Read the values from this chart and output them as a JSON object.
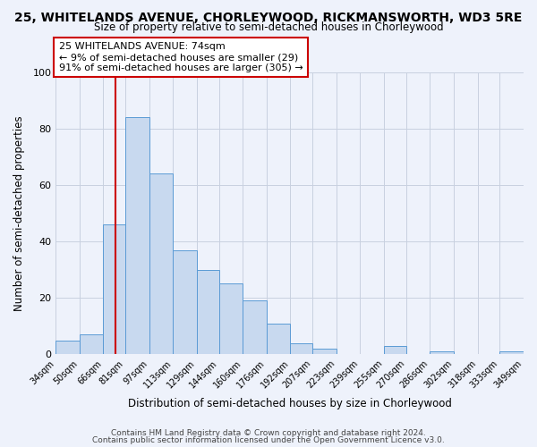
{
  "title1": "25, WHITELANDS AVENUE, CHORLEYWOOD, RICKMANSWORTH, WD3 5RE",
  "title2": "Size of property relative to semi-detached houses in Chorleywood",
  "xlabel": "Distribution of semi-detached houses by size in Chorleywood",
  "ylabel": "Number of semi-detached properties",
  "bin_labels": [
    "34sqm",
    "50sqm",
    "66sqm",
    "81sqm",
    "97sqm",
    "113sqm",
    "129sqm",
    "144sqm",
    "160sqm",
    "176sqm",
    "192sqm",
    "207sqm",
    "223sqm",
    "239sqm",
    "255sqm",
    "270sqm",
    "286sqm",
    "302sqm",
    "318sqm",
    "333sqm",
    "349sqm"
  ],
  "bar_heights": [
    5,
    7,
    46,
    84,
    64,
    37,
    30,
    25,
    19,
    11,
    4,
    2,
    0,
    0,
    3,
    0,
    1,
    0,
    0,
    1,
    0
  ],
  "bar_color": "#c8d9ef",
  "bar_edge_color": "#5b9bd5",
  "vline_color": "#cc0000",
  "annotation_title": "25 WHITELANDS AVENUE: 74sqm",
  "annotation_line1": "← 9% of semi-detached houses are smaller (29)",
  "annotation_line2": "91% of semi-detached houses are larger (305) →",
  "annotation_box_color": "#ffffff",
  "annotation_box_edge": "#cc0000",
  "footer1": "Contains HM Land Registry data © Crown copyright and database right 2024.",
  "footer2": "Contains public sector information licensed under the Open Government Licence v3.0.",
  "ylim": [
    0,
    100
  ],
  "bin_edges": [
    34,
    50,
    66,
    81,
    97,
    113,
    129,
    144,
    160,
    176,
    192,
    207,
    223,
    239,
    255,
    270,
    286,
    302,
    318,
    333,
    349
  ],
  "plot_bg_color": "#eef2fb",
  "fig_bg_color": "#eef2fb",
  "grid_color": "#c8d0e0",
  "vline_x_idx": 2,
  "property_sqm": 74
}
